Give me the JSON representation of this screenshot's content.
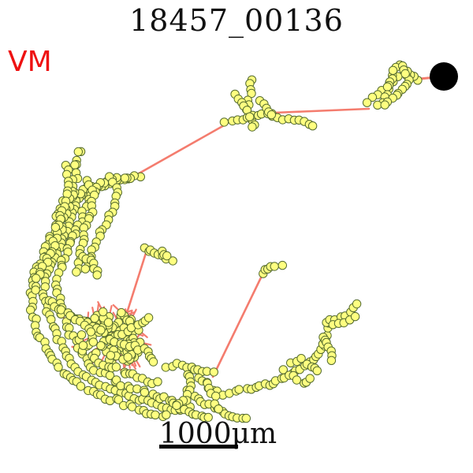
{
  "figure": {
    "title": "18457_00136",
    "region_label": "VM",
    "scale_label": "1000μm",
    "colors": {
      "skeleton_line": "#f47c6e",
      "node_fill": "#ffff80",
      "node_edge": "#556b2f",
      "soma": "#000000",
      "region_label": "#ee1111"
    }
  }
}
